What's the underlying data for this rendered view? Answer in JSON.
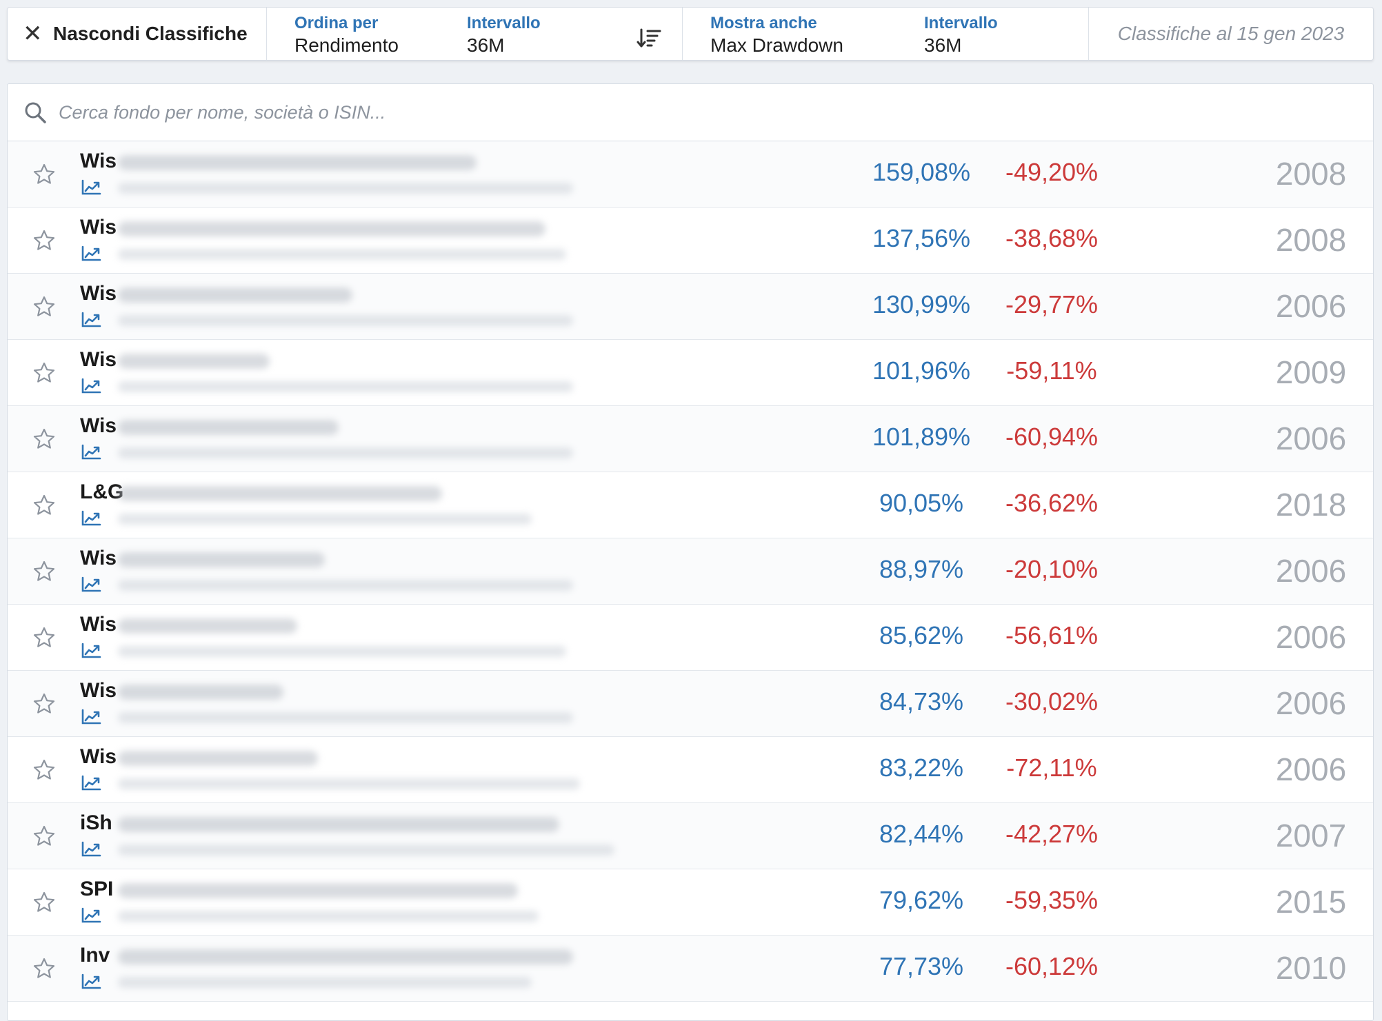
{
  "topbar": {
    "hide_label": "Nascondi Classifiche",
    "sort": {
      "order_caption": "Ordina per",
      "order_value": "Rendimento",
      "interval_caption": "Intervallo",
      "interval_value": "36M"
    },
    "show": {
      "also_caption": "Mostra anche",
      "also_value": "Max Drawdown",
      "interval_caption": "Intervallo",
      "interval_value": "36M"
    },
    "date_label": "Classifiche al 15 gen 2023"
  },
  "search": {
    "placeholder": "Cerca fondo per nome, società o ISIN..."
  },
  "colors": {
    "accent": "#2f74b5",
    "negative": "#cc3a3a",
    "muted": "#a8adb4"
  },
  "rows": [
    {
      "name": "Wis",
      "return": "159,08%",
      "drawdown": "-49,20%",
      "year": "2008"
    },
    {
      "name": "Wis",
      "return": "137,56%",
      "drawdown": "-38,68%",
      "year": "2008"
    },
    {
      "name": "Wis",
      "return": "130,99%",
      "drawdown": "-29,77%",
      "year": "2006"
    },
    {
      "name": "Wis",
      "return": "101,96%",
      "drawdown": "-59,11%",
      "year": "2009"
    },
    {
      "name": "Wis",
      "return": "101,89%",
      "drawdown": "-60,94%",
      "year": "2006"
    },
    {
      "name": "L&G",
      "return": "90,05%",
      "drawdown": "-36,62%",
      "year": "2018"
    },
    {
      "name": "Wis",
      "return": "88,97%",
      "drawdown": "-20,10%",
      "year": "2006"
    },
    {
      "name": "Wis",
      "return": "85,62%",
      "drawdown": "-56,61%",
      "year": "2006"
    },
    {
      "name": "Wis",
      "return": "84,73%",
      "drawdown": "-30,02%",
      "year": "2006"
    },
    {
      "name": "Wis",
      "return": "83,22%",
      "drawdown": "-72,11%",
      "year": "2006"
    },
    {
      "name": "iSh",
      "return": "82,44%",
      "drawdown": "-42,27%",
      "year": "2007"
    },
    {
      "name": "SPI",
      "return": "79,62%",
      "drawdown": "-59,35%",
      "year": "2015"
    },
    {
      "name": "Inv",
      "return": "77,73%",
      "drawdown": "-60,12%",
      "year": "2010"
    }
  ]
}
